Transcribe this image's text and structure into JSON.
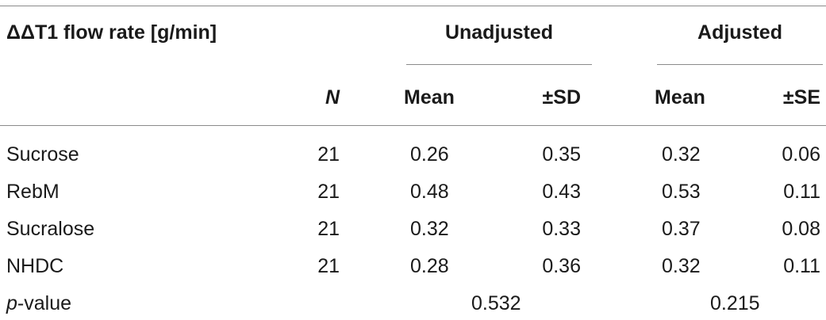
{
  "table": {
    "header": {
      "title": "ΔΔT1 flow rate [g/min]",
      "group_unadjusted": "Unadjusted",
      "group_adjusted": "Adjusted",
      "col_n": "N",
      "col_unadj_mean": "Mean",
      "col_unadj_sd": "±SD",
      "col_adj_mean": "Mean",
      "col_adj_se": "±SE"
    },
    "rows": [
      {
        "label": "Sucrose",
        "n": "21",
        "unadj_mean": "0.26",
        "unadj_sd": "0.35",
        "adj_mean": "0.32",
        "adj_se": "0.06"
      },
      {
        "label": "RebM",
        "n": "21",
        "unadj_mean": "0.48",
        "unadj_sd": "0.43",
        "adj_mean": "0.53",
        "adj_se": "0.11"
      },
      {
        "label": "Sucralose",
        "n": "21",
        "unadj_mean": "0.32",
        "unadj_sd": "0.33",
        "adj_mean": "0.37",
        "adj_se": "0.08"
      },
      {
        "label": "NHDC",
        "n": "21",
        "unadj_mean": "0.28",
        "unadj_sd": "0.36",
        "adj_mean": "0.32",
        "adj_se": "0.11"
      }
    ],
    "pvalue": {
      "label_italic": "p",
      "label_rest": "-value",
      "unadjusted": "0.532",
      "adjusted": "0.215"
    }
  }
}
